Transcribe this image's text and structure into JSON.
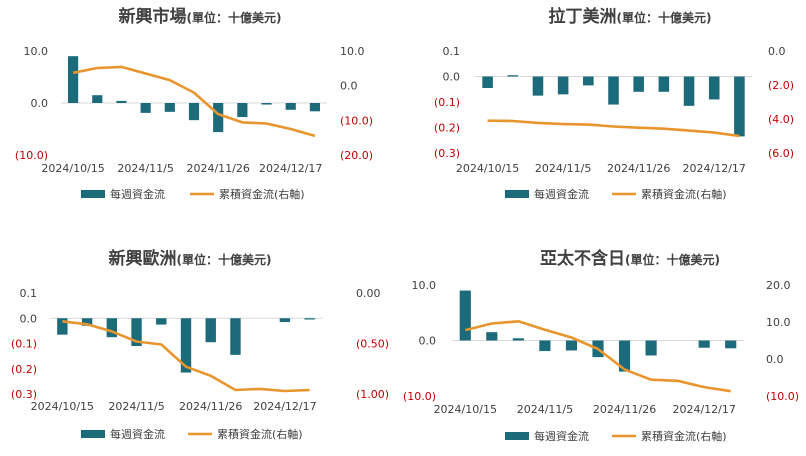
{
  "legend": {
    "bar_label": "每週資金流",
    "line_label": "累積資金流(右軸)"
  },
  "colors": {
    "bar": "#1b6b7b",
    "line": "#e8952e",
    "negative_label": "#c00000",
    "axis_text": "#404040",
    "gridline": "#d9d9d9"
  },
  "chart_data": [
    {
      "type": "bar",
      "title": "新興市場",
      "unit": "(單位：十億美元)",
      "x_labels": [
        "2024/10/15",
        "2024/11/5",
        "2024/11/26",
        "2024/12/17"
      ],
      "left_axis": {
        "ylim": [
          -10,
          10
        ],
        "ticks": [
          10,
          0,
          -10
        ],
        "tick_labels": [
          "10.0",
          "0.0",
          "(10.0)"
        ]
      },
      "right_axis": {
        "ylim": [
          -20,
          10
        ],
        "ticks": [
          10,
          0,
          -10,
          -20
        ],
        "tick_labels": [
          "10.0",
          "0.0",
          "(10.0)",
          "(20.0)"
        ]
      },
      "series": [
        {
          "name": "每週資金流",
          "type": "bar",
          "axis": "left",
          "values": [
            9.0,
            1.5,
            0.4,
            -1.9,
            -1.7,
            -3.3,
            -5.6,
            -2.7,
            -0.3,
            -1.3,
            -1.6
          ]
        },
        {
          "name": "累積資金流(右軸)",
          "type": "line",
          "axis": "right",
          "values": [
            3.7,
            5.1,
            5.4,
            3.5,
            1.6,
            -2.0,
            -8.2,
            -10.6,
            -10.9,
            -12.5,
            -14.5
          ]
        }
      ]
    },
    {
      "type": "bar",
      "title": "拉丁美洲",
      "unit": "(單位：十億美元)",
      "x_labels": [
        "2024/10/15",
        "2024/11/5",
        "2024/11/26",
        "2024/12/17"
      ],
      "left_axis": {
        "ylim": [
          -0.3,
          0.1
        ],
        "ticks": [
          0.1,
          0,
          -0.1,
          -0.2,
          -0.3
        ],
        "tick_labels": [
          "0.1",
          "0.0",
          "(0.1)",
          "(0.2)",
          "(0.3)"
        ]
      },
      "right_axis": {
        "ylim": [
          -6,
          0
        ],
        "ticks": [
          0,
          -2,
          -4,
          -6
        ],
        "tick_labels": [
          "0.0",
          "(2.0)",
          "(4.0)",
          "(6.0)"
        ]
      },
      "series": [
        {
          "name": "每週資金流",
          "type": "bar",
          "axis": "left",
          "values": [
            -0.045,
            0.005,
            -0.075,
            -0.07,
            -0.035,
            -0.11,
            -0.06,
            -0.06,
            -0.115,
            -0.09,
            -0.235
          ]
        },
        {
          "name": "累積資金流(右軸)",
          "type": "line",
          "axis": "right",
          "values": [
            -4.1,
            -4.12,
            -4.23,
            -4.3,
            -4.33,
            -4.44,
            -4.51,
            -4.57,
            -4.68,
            -4.8,
            -5.0
          ]
        }
      ]
    },
    {
      "type": "bar",
      "title": "新興歐洲",
      "unit": "(單位：十億美元)",
      "x_labels": [
        "2024/10/15",
        "2024/11/5",
        "2024/11/26",
        "2024/12/17"
      ],
      "left_axis": {
        "ylim": [
          -0.3,
          0.1
        ],
        "ticks": [
          0.1,
          0,
          -0.1,
          -0.2,
          -0.3
        ],
        "tick_labels": [
          "0.1",
          "0.0",
          "(0.1)",
          "(0.2)",
          "(0.3)"
        ]
      },
      "right_axis": {
        "ylim": [
          -1.0,
          0
        ],
        "ticks": [
          0,
          -0.5,
          -1.0
        ],
        "tick_labels": [
          "0.00",
          "(0.50)",
          "(1.00)"
        ]
      },
      "series": [
        {
          "name": "每週資金流",
          "type": "bar",
          "axis": "left",
          "values": [
            -0.065,
            -0.03,
            -0.075,
            -0.11,
            -0.025,
            -0.215,
            -0.095,
            -0.145,
            0.0,
            -0.015,
            -0.005
          ]
        },
        {
          "name": "累積資金流(右軸)",
          "type": "line",
          "axis": "right",
          "values": [
            -0.28,
            -0.31,
            -0.38,
            -0.48,
            -0.51,
            -0.73,
            -0.82,
            -0.96,
            -0.95,
            -0.97,
            -0.96
          ]
        }
      ]
    },
    {
      "type": "bar",
      "title": "亞太不含日",
      "unit": "(單位：十億美元)",
      "x_labels": [
        "2024/10/15",
        "2024/11/5",
        "2024/11/26",
        "2024/12/17"
      ],
      "left_axis": {
        "ylim": [
          -10,
          10
        ],
        "ticks": [
          10,
          0,
          -10
        ],
        "tick_labels": [
          "10.0",
          "0.0",
          "(10.0)"
        ]
      },
      "right_axis": {
        "ylim": [
          -10,
          20
        ],
        "ticks": [
          20,
          10,
          0,
          -10
        ],
        "tick_labels": [
          "20.0",
          "10.0",
          "0.0",
          "(10.0)"
        ]
      },
      "series": [
        {
          "name": "每週資金流",
          "type": "bar",
          "axis": "left",
          "values": [
            9.0,
            1.5,
            0.4,
            -1.9,
            -1.8,
            -3.0,
            -5.6,
            -2.7,
            0.0,
            -1.3,
            -1.4
          ]
        },
        {
          "name": "累積資金流(右軸)",
          "type": "line",
          "axis": "right",
          "values": [
            7.8,
            9.6,
            10.2,
            7.9,
            5.8,
            2.7,
            -2.8,
            -5.6,
            -5.9,
            -7.6,
            -8.7
          ]
        }
      ]
    }
  ]
}
